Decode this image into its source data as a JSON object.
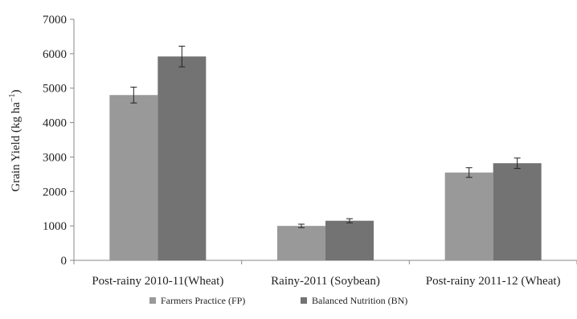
{
  "chart_data": {
    "type": "bar",
    "categories": [
      "Post-rainy 2010-11(Wheat)",
      "Rainy-2011 (Soybean)",
      "Post-rainy 2011-12 (Wheat)"
    ],
    "series": [
      {
        "name": "Farmers Practice (FP)",
        "values": [
          4800,
          1000,
          2550
        ],
        "errors": [
          230,
          50,
          140
        ],
        "color": "#999999"
      },
      {
        "name": "Balanced Nutrition (BN)",
        "values": [
          5920,
          1150,
          2820
        ],
        "errors": [
          300,
          60,
          150
        ],
        "color": "#737373"
      }
    ],
    "ylabel_main": "Grain Yield (kg ha",
    "ylabel_sup": "−1",
    "ylabel_end": ")",
    "ylim": [
      0,
      7000
    ],
    "yticks": [
      "0",
      "1000",
      "2000",
      "3000",
      "4000",
      "5000",
      "6000",
      "7000"
    ],
    "grid": false,
    "legend_position": "bottom"
  }
}
